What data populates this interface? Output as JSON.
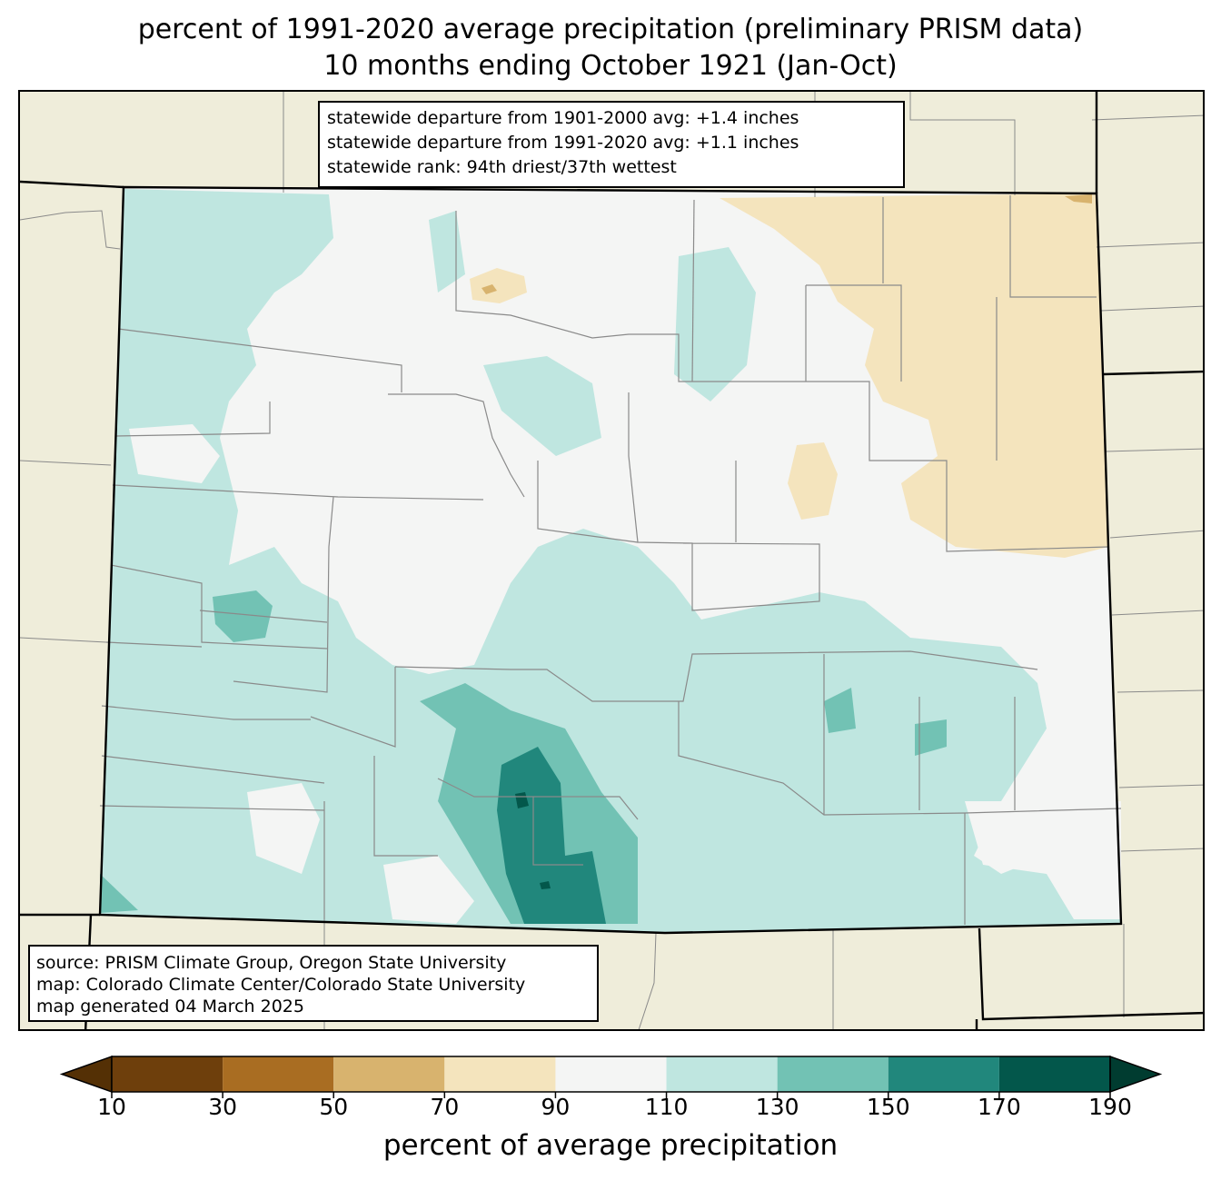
{
  "title": {
    "line1": "percent of 1991-2020 average precipitation (preliminary PRISM data)",
    "line2": "10 months ending October 1921 (Jan-Oct)"
  },
  "stats": {
    "line1": "statewide departure from 1901-2000 avg: +1.4 inches",
    "line2": "statewide departure from 1991-2020 avg: +1.1 inches",
    "line3": "statewide rank: 94th driest/37th wettest"
  },
  "source": {
    "line1": "source: PRISM Climate Group, Oregon State University",
    "line2": "map: Colorado Climate Center/Colorado State University",
    "line3": "map generated 04 March 2025"
  },
  "legend": {
    "title": "percent of average precipitation",
    "ticks": [
      "10",
      "30",
      "50",
      "70",
      "90",
      "110",
      "130",
      "150",
      "170",
      "190"
    ],
    "bins": [
      {
        "range": "10-30",
        "color": "#6e3f0c"
      },
      {
        "range": "30-50",
        "color": "#a96d22"
      },
      {
        "range": "50-70",
        "color": "#d8b36e"
      },
      {
        "range": "70-90",
        "color": "#f4e4bd"
      },
      {
        "range": "90-110",
        "color": "#f4f5f4"
      },
      {
        "range": "110-130",
        "color": "#bfe6e0"
      },
      {
        "range": "130-150",
        "color": "#72c2b4"
      },
      {
        "range": "150-170",
        "color": "#21877c"
      },
      {
        "range": "170-190",
        "color": "#03574b"
      }
    ],
    "under_color": "#543005",
    "over_color": "#003c30"
  },
  "colors": {
    "background_land": "#efedda",
    "county_lines": "#8a8a8a",
    "state_lines": "#000000"
  }
}
